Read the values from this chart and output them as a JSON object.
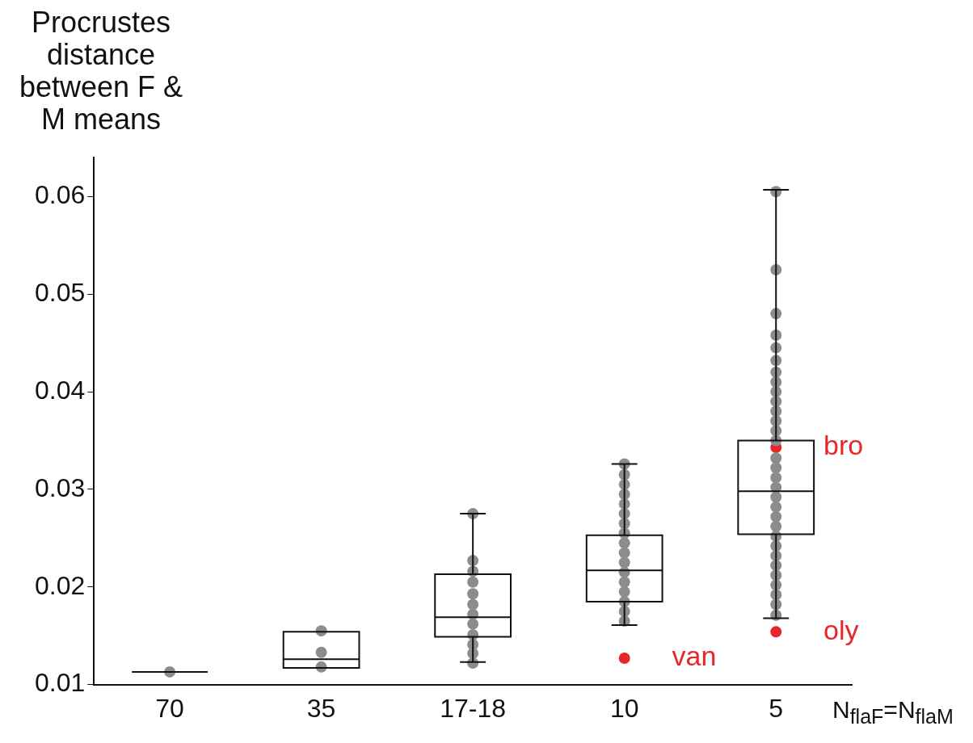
{
  "chart_data": {
    "type": "box",
    "ylabel": "Procrustes distance between F & M means",
    "xlabel": "N$_{flaF}$=N$_{flaM}$",
    "categories": [
      "70",
      "35",
      "17-18",
      "10",
      "5"
    ],
    "ylim": [
      0.01,
      0.064
    ],
    "yticks": [
      0.01,
      0.02,
      0.03,
      0.04,
      0.05,
      0.06
    ],
    "boxes": [
      {
        "low": 0.0113,
        "q1": 0.0113,
        "median": 0.0113,
        "q3": 0.0113,
        "high": 0.0113
      },
      {
        "low": 0.0117,
        "q1": 0.0117,
        "median": 0.0126,
        "q3": 0.0154,
        "high": 0.0154
      },
      {
        "low": 0.0123,
        "q1": 0.0149,
        "median": 0.0169,
        "q3": 0.0213,
        "high": 0.0275
      },
      {
        "low": 0.0161,
        "q1": 0.0185,
        "median": 0.0217,
        "q3": 0.0253,
        "high": 0.0326
      },
      {
        "low": 0.0168,
        "q1": 0.0254,
        "median": 0.0298,
        "q3": 0.035,
        "high": 0.0607
      }
    ],
    "series": [
      {
        "type": "scatter",
        "color": "#8c8c8c",
        "x": [
          "70",
          "35",
          "35",
          "35",
          "17-18",
          "17-18",
          "17-18",
          "17-18",
          "17-18",
          "17-18",
          "17-18",
          "17-18",
          "17-18",
          "17-18",
          "17-18",
          "17-18"
        ],
        "values": [
          0.0113,
          0.0155,
          0.0133,
          0.0118,
          0.0275,
          0.0227,
          0.0216,
          0.0205,
          0.0193,
          0.0182,
          0.0172,
          0.0162,
          0.0151,
          0.0141,
          0.0132,
          0.0122
        ]
      },
      {
        "type": "scatter",
        "color": "#8c8c8c",
        "x": [
          "10",
          "10",
          "10",
          "10",
          "10",
          "10",
          "10",
          "10",
          "10",
          "10",
          "10",
          "10",
          "10",
          "10",
          "10",
          "10",
          "10"
        ],
        "values": [
          0.0326,
          0.0315,
          0.0305,
          0.0295,
          0.0285,
          0.0275,
          0.0265,
          0.0255,
          0.0245,
          0.0235,
          0.0225,
          0.0215,
          0.0205,
          0.0195,
          0.0185,
          0.0175,
          0.0165
        ]
      },
      {
        "type": "scatter",
        "color": "#8c8c8c",
        "x": [
          "5",
          "5",
          "5",
          "5",
          "5",
          "5",
          "5",
          "5",
          "5",
          "5",
          "5",
          "5",
          "5",
          "5",
          "5",
          "5",
          "5",
          "5",
          "5",
          "5",
          "5",
          "5",
          "5",
          "5",
          "5",
          "5",
          "5",
          "5",
          "5",
          "5",
          "5"
        ],
        "values": [
          0.0605,
          0.0525,
          0.048,
          0.0458,
          0.0445,
          0.0432,
          0.042,
          0.041,
          0.04,
          0.039,
          0.038,
          0.037,
          0.036,
          0.035,
          0.0332,
          0.0322,
          0.0312,
          0.0302,
          0.0292,
          0.0282,
          0.0272,
          0.0262,
          0.0252,
          0.0242,
          0.0232,
          0.0222,
          0.0212,
          0.0202,
          0.0192,
          0.0182,
          0.0171
        ]
      },
      {
        "type": "scatter",
        "color": "#e8262a",
        "x": [
          "10",
          "5",
          "5"
        ],
        "values": [
          0.0127,
          0.0343,
          0.0154
        ]
      }
    ],
    "annotations": [
      {
        "text": "van",
        "x": "10",
        "y": 0.0127
      },
      {
        "text": "bro",
        "x": "5",
        "y": 0.0343
      },
      {
        "text": "oly",
        "x": "5",
        "y": 0.0154
      }
    ]
  }
}
